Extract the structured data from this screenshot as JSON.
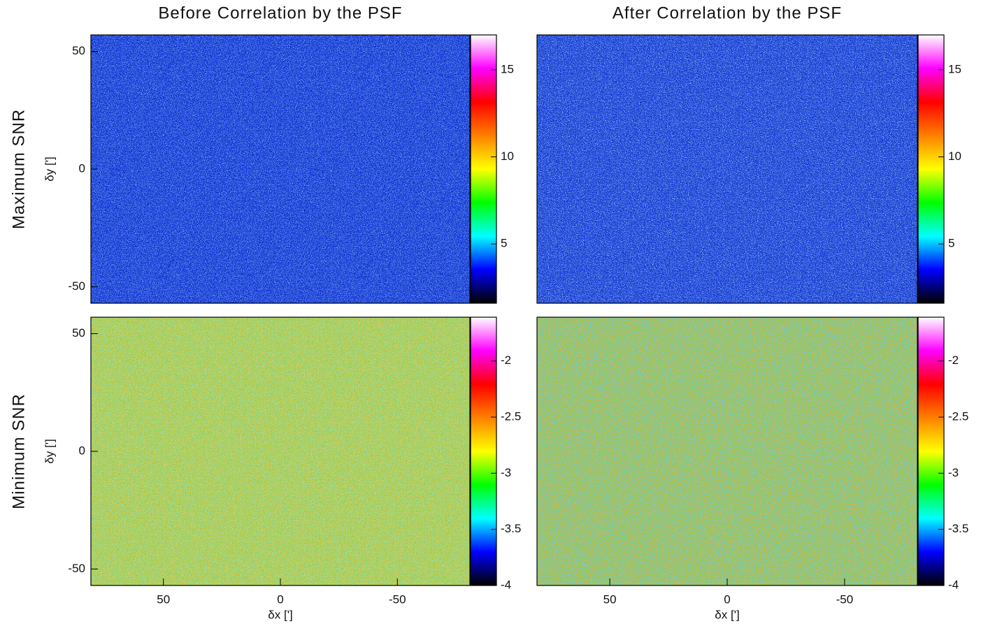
{
  "column_titles": [
    "Before Correlation by the PSF",
    "After Correlation by the PSF"
  ],
  "row_labels": [
    "Maximum SNR",
    "Minimum SNR"
  ],
  "chart_data": [
    {
      "type": "heatmap",
      "ylabel": "δy [']",
      "xlim": [
        81,
        -81
      ],
      "ylim": [
        -57,
        57
      ],
      "yticks": [
        50,
        0,
        -50
      ],
      "colorbar_lim": [
        1.6,
        17
      ],
      "colorbar_ticks": [
        5,
        10,
        15
      ],
      "color": "#0b2bd4",
      "speckle": [
        "#2a60f0",
        "#0a1ea8"
      ]
    },
    {
      "type": "heatmap",
      "xlim": [
        81,
        -81
      ],
      "ylim": [
        -57,
        57
      ],
      "colorbar_lim": [
        1.6,
        17
      ],
      "colorbar_ticks": [
        5,
        10,
        15
      ],
      "color": "#0f34d6",
      "speckle": [
        "#3b78ff",
        "#0a1a9a"
      ]
    },
    {
      "type": "heatmap",
      "xlabel": "δx [']",
      "ylabel": "δy [']",
      "xlim": [
        81,
        -81
      ],
      "ylim": [
        -57,
        57
      ],
      "xticks": [
        50,
        0,
        -50
      ],
      "yticks": [
        50,
        0,
        -50
      ],
      "colorbar_lim": [
        -4,
        -1.61
      ],
      "colorbar_ticks": [
        -4,
        -3.5,
        -3,
        -2.5,
        -2
      ],
      "color": "#a6c83a",
      "speckle": [
        "#e8901e",
        "#3cc47a"
      ]
    },
    {
      "type": "heatmap",
      "xlabel": "δx [']",
      "xlim": [
        81,
        -81
      ],
      "ylim": [
        -57,
        57
      ],
      "xticks": [
        50,
        0,
        -50
      ],
      "colorbar_lim": [
        -4,
        -1.61
      ],
      "colorbar_ticks": [
        -4,
        -3.5,
        -3,
        -2.5,
        -2
      ],
      "color": "#98c83e",
      "speckle": [
        "#f06418",
        "#1c9ed8"
      ]
    }
  ],
  "colormap": [
    "#000000",
    "#0000ff",
    "#00ffff",
    "#00ff00",
    "#ffff00",
    "#ff8000",
    "#ff0000",
    "#ff00ff",
    "#ffffff"
  ]
}
